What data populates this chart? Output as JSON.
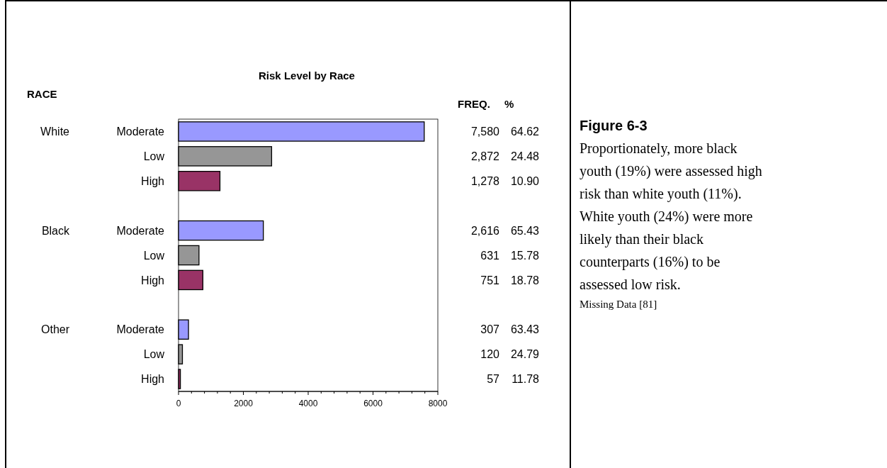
{
  "chart_data": {
    "type": "bar",
    "orientation": "horizontal",
    "title": "Risk Level by Race",
    "categories": [
      "Moderate",
      "Low",
      "High",
      null,
      "Moderate",
      "Low",
      "High",
      null,
      "Moderate",
      "Low",
      "High"
    ],
    "values": [
      7580,
      2872,
      1278,
      null,
      2616,
      631,
      751,
      null,
      307,
      120,
      57
    ],
    "colors": [
      "#9999ff",
      "#969696",
      "#993366",
      null,
      "#9999ff",
      "#969696",
      "#993366",
      null,
      "#9999ff",
      "#969696",
      "#993366"
    ],
    "value_labels": [
      "7,580",
      "2,872",
      "1,278",
      null,
      "2,616",
      "631",
      "751",
      null,
      "307",
      "120",
      "57"
    ],
    "xlim": [
      0,
      8000
    ],
    "xticks": [
      0,
      {
        "value": 400,
        "label": null
      },
      {
        "value": 800,
        "label": null
      },
      {
        "value": 1200,
        "label": null
      },
      {
        "value": 1600,
        "label": null
      },
      2000,
      {
        "value": 2400,
        "label": null
      },
      {
        "value": 2800,
        "label": null
      },
      {
        "value": 3200,
        "label": null
      },
      {
        "value": 3600,
        "label": null
      },
      4000,
      {
        "value": 4400,
        "label": null
      },
      {
        "value": 4800,
        "label": null
      },
      {
        "value": 5200,
        "label": null
      },
      {
        "value": 5600,
        "label": null
      },
      6000,
      {
        "value": 6400,
        "label": null
      },
      {
        "value": 6800,
        "label": null
      },
      {
        "value": 7200,
        "label": null
      },
      {
        "value": 7600,
        "label": null
      },
      8000
    ],
    "annotations": [
      "RACE",
      "White",
      "Black",
      "Other",
      "FREQ.",
      "%",
      "64.62",
      "24.48",
      "10.90",
      "65.43",
      "15.78",
      "18.78",
      "63.43",
      "24.79",
      "11.78",
      "Figure 6-3",
      "Proportionately, more black youth (19%) were assessed high risk than white youth (11%). White youth (24%) were more likely than their black counterparts (16%) to be assessed low risk.",
      "Missing Data [81]"
    ]
  }
}
